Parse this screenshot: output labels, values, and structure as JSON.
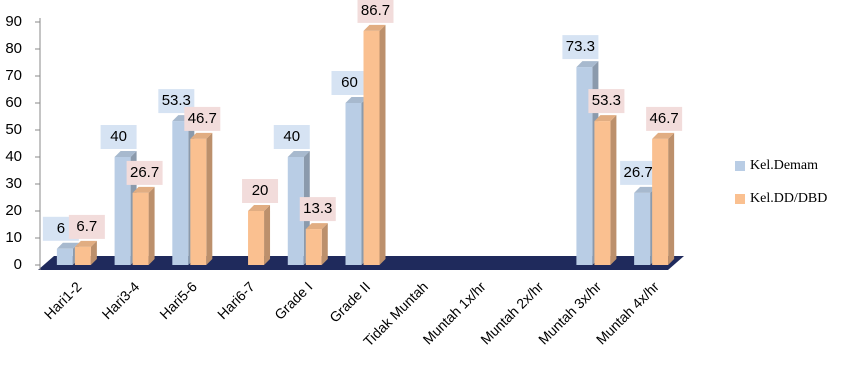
{
  "chart_data": {
    "type": "bar",
    "categories": [
      "Hari1-2",
      "Hari3-4",
      "Hari5-6",
      "Hari6-7",
      "Grade I",
      "Grade II",
      "Tidak Muntah",
      "Muntah 1x/hr",
      "Muntah 2x/hr",
      "Muntah 3x/hr",
      "Muntah 4x/hr"
    ],
    "series": [
      {
        "name": "Kel.Demam",
        "color": "#b9cde5",
        "values": [
          6,
          40,
          53.3,
          null,
          40,
          60,
          null,
          null,
          null,
          73.3,
          26.7
        ]
      },
      {
        "name": "Kel.DD/DBD",
        "color": "#fac090",
        "values": [
          6.7,
          26.7,
          46.7,
          20,
          13.3,
          86.7,
          null,
          null,
          null,
          53.3,
          46.7
        ]
      }
    ],
    "ylim": [
      0,
      90
    ],
    "yticks": [
      0,
      10,
      20,
      30,
      40,
      50,
      60,
      70,
      80,
      90
    ],
    "legend": "right"
  }
}
